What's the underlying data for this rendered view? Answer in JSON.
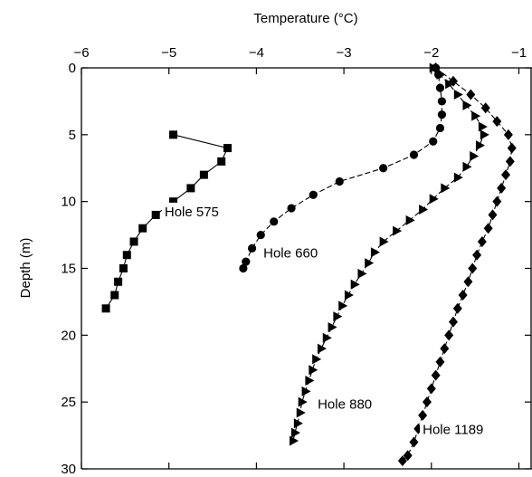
{
  "chart_data": {
    "type": "line",
    "xlabel": "Temperature (°C)",
    "ylabel": "Depth (m)",
    "xlim": [
      -6,
      -0.85
    ],
    "ylim": [
      0,
      30
    ],
    "y_inverted": true,
    "x_axis_position": "top",
    "grid": false,
    "x_ticks": [
      -6,
      -5,
      -4,
      -3,
      -2,
      -1
    ],
    "x_tick_labels": [
      "−6",
      "−5",
      "−4",
      "−3",
      "−2",
      "−1"
    ],
    "y_ticks": [
      0,
      5,
      10,
      15,
      20,
      25,
      30
    ],
    "y_tick_labels": [
      "0",
      "5",
      "10",
      "15",
      "20",
      "25",
      "30"
    ],
    "series": [
      {
        "marker": "square",
        "line": "solid",
        "label": "Hole 575",
        "points": [
          [
            -4.95,
            5
          ],
          [
            -4.33,
            6
          ],
          [
            -4.4,
            7
          ],
          [
            -4.6,
            8
          ],
          [
            -4.75,
            9
          ],
          [
            -4.95,
            10
          ],
          [
            -5.15,
            11
          ],
          [
            -5.3,
            12
          ],
          [
            -5.4,
            13
          ],
          [
            -5.48,
            14
          ],
          [
            -5.52,
            15
          ],
          [
            -5.58,
            16
          ],
          [
            -5.62,
            17
          ],
          [
            -5.72,
            18
          ]
        ]
      },
      {
        "marker": "circle",
        "line": "dashed",
        "label": "Hole 660",
        "points": [
          [
            -1.95,
            0
          ],
          [
            -1.92,
            0.5
          ],
          [
            -1.9,
            1.5
          ],
          [
            -1.88,
            2.5
          ],
          [
            -1.88,
            3.5
          ],
          [
            -1.9,
            4.5
          ],
          [
            -1.98,
            5.5
          ],
          [
            -2.2,
            6.5
          ],
          [
            -2.55,
            7.5
          ],
          [
            -3.05,
            8.5
          ],
          [
            -3.35,
            9.5
          ],
          [
            -3.6,
            10.5
          ],
          [
            -3.8,
            11.5
          ],
          [
            -3.95,
            12.5
          ],
          [
            -4.05,
            13.5
          ],
          [
            -4.12,
            14.5
          ],
          [
            -4.15,
            15
          ]
        ]
      },
      {
        "marker": "triangle-right",
        "line": "dashed",
        "label": "Hole 880",
        "points": [
          [
            -1.98,
            0
          ],
          [
            -1.9,
            0.5
          ],
          [
            -1.8,
            1.2
          ],
          [
            -1.7,
            2
          ],
          [
            -1.6,
            2.8
          ],
          [
            -1.5,
            3.6
          ],
          [
            -1.42,
            4.4
          ],
          [
            -1.4,
            5
          ],
          [
            -1.45,
            5.8
          ],
          [
            -1.52,
            6.6
          ],
          [
            -1.6,
            7.4
          ],
          [
            -1.7,
            8.2
          ],
          [
            -1.85,
            9
          ],
          [
            -1.98,
            9.8
          ],
          [
            -2.1,
            10.6
          ],
          [
            -2.25,
            11.4
          ],
          [
            -2.4,
            12.2
          ],
          [
            -2.55,
            13
          ],
          [
            -2.65,
            13.8
          ],
          [
            -2.72,
            14.6
          ],
          [
            -2.8,
            15.4
          ],
          [
            -2.88,
            16.2
          ],
          [
            -2.95,
            17
          ],
          [
            -3.02,
            17.8
          ],
          [
            -3.08,
            18.6
          ],
          [
            -3.14,
            19.4
          ],
          [
            -3.2,
            20.2
          ],
          [
            -3.26,
            21
          ],
          [
            -3.32,
            21.8
          ],
          [
            -3.36,
            22.6
          ],
          [
            -3.4,
            23.4
          ],
          [
            -3.44,
            24.2
          ],
          [
            -3.48,
            25
          ],
          [
            -3.5,
            25.8
          ],
          [
            -3.53,
            26.6
          ],
          [
            -3.56,
            27.3
          ],
          [
            -3.58,
            27.9
          ]
        ]
      },
      {
        "marker": "diamond",
        "line": "dashed",
        "label": "Hole 1189",
        "points": [
          [
            -1.95,
            0
          ],
          [
            -1.75,
            1
          ],
          [
            -1.55,
            2
          ],
          [
            -1.38,
            3
          ],
          [
            -1.25,
            4
          ],
          [
            -1.12,
            5
          ],
          [
            -1.08,
            6
          ],
          [
            -1.1,
            7
          ],
          [
            -1.15,
            8
          ],
          [
            -1.2,
            9
          ],
          [
            -1.25,
            10
          ],
          [
            -1.3,
            11
          ],
          [
            -1.35,
            12
          ],
          [
            -1.42,
            13
          ],
          [
            -1.48,
            14
          ],
          [
            -1.53,
            15
          ],
          [
            -1.58,
            16
          ],
          [
            -1.64,
            17
          ],
          [
            -1.7,
            18
          ],
          [
            -1.75,
            19
          ],
          [
            -1.8,
            20
          ],
          [
            -1.85,
            21
          ],
          [
            -1.9,
            22
          ],
          [
            -1.95,
            23
          ],
          [
            -2.0,
            24
          ],
          [
            -2.05,
            25
          ],
          [
            -2.1,
            26
          ],
          [
            -2.15,
            27
          ],
          [
            -2.2,
            28
          ],
          [
            -2.27,
            29
          ],
          [
            -2.33,
            29.4
          ]
        ]
      }
    ],
    "annotations": [
      {
        "text": "Hole 575",
        "x": -5.05,
        "y": 11.1
      },
      {
        "text": "Hole 660",
        "x": -3.92,
        "y": 14.2
      },
      {
        "text": "Hole 880",
        "x": -3.3,
        "y": 25.5
      },
      {
        "text": "Hole 1189",
        "x": -2.1,
        "y": 27.4
      }
    ]
  }
}
